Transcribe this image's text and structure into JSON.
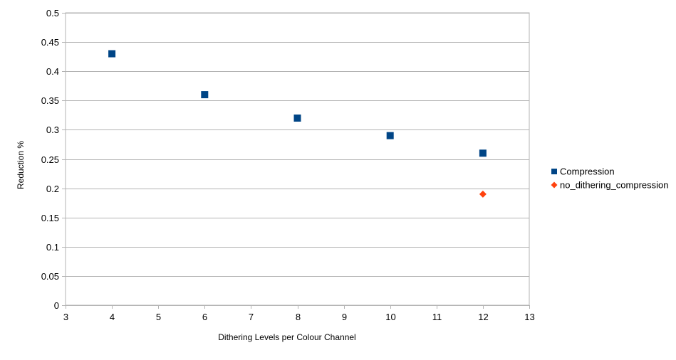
{
  "chart_data": {
    "type": "scatter",
    "title": "",
    "xlabel": "Dithering Levels per Colour Channel",
    "ylabel": "Reduction %",
    "xlim": [
      3,
      13
    ],
    "ylim": [
      0,
      0.5
    ],
    "x_ticks": [
      3,
      4,
      5,
      6,
      7,
      8,
      9,
      10,
      11,
      12,
      13
    ],
    "y_ticks": [
      0,
      0.05,
      0.1,
      0.15,
      0.2,
      0.25,
      0.3,
      0.35,
      0.4,
      0.45,
      0.5
    ],
    "grid": {
      "horizontal": true,
      "vertical": false
    },
    "legend_position": "right",
    "series": [
      {
        "name": "Compression",
        "marker": "square",
        "color": "#004586",
        "x": [
          4,
          6,
          8,
          10,
          12
        ],
        "y": [
          0.43,
          0.36,
          0.32,
          0.29,
          0.26
        ]
      },
      {
        "name": "no_dithering_compression",
        "marker": "diamond",
        "color": "#ff420e",
        "x": [
          12
        ],
        "y": [
          0.19
        ]
      }
    ]
  }
}
